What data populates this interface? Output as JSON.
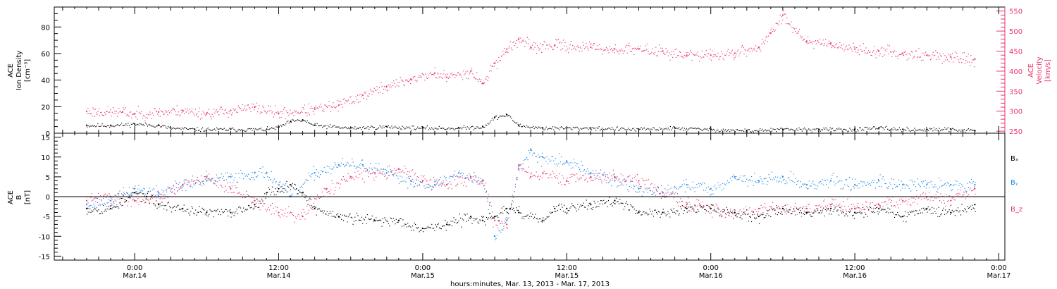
{
  "chart_data": [
    {
      "type": "scatter",
      "panel": "top",
      "ylabel_left": [
        "ACE",
        "Ion Density",
        "[cm⁻³]"
      ],
      "ylabel_right": [
        "ACE",
        "Velocity",
        "[km/s]"
      ],
      "left_axis": {
        "ylim": [
          0,
          95
        ],
        "ticks": [
          "0",
          "20",
          "40",
          "60",
          "80"
        ],
        "tick_values": [
          0,
          20,
          40,
          60,
          80
        ]
      },
      "right_axis": {
        "ylim": [
          245,
          560
        ],
        "ticks": [
          "250",
          "300",
          "350",
          "400",
          "450",
          "500",
          "550"
        ],
        "tick_values": [
          250,
          300,
          350,
          400,
          450,
          500,
          550
        ],
        "color": "#e8356a"
      },
      "series": [
        {
          "axis": "left",
          "color": "#000000",
          "points": [
            [
              -4,
              6
            ],
            [
              -2,
              6
            ],
            [
              0,
              7
            ],
            [
              2,
              6
            ],
            [
              3,
              4
            ],
            [
              5,
              3
            ],
            [
              8,
              3
            ],
            [
              11,
              3
            ],
            [
              12,
              5
            ],
            [
              13,
              9
            ],
            [
              14,
              10
            ],
            [
              15,
              6
            ],
            [
              18,
              4
            ],
            [
              21,
              5
            ],
            [
              24,
              4
            ],
            [
              27,
              4
            ],
            [
              29,
              5
            ],
            [
              30,
              12
            ],
            [
              31,
              14
            ],
            [
              32,
              6
            ],
            [
              34,
              4
            ],
            [
              38,
              4
            ],
            [
              42,
              3
            ],
            [
              45,
              4
            ],
            [
              48,
              3
            ],
            [
              51,
              2
            ],
            [
              54,
              3
            ],
            [
              57,
              3
            ],
            [
              60,
              3
            ],
            [
              62,
              4
            ],
            [
              64,
              3
            ],
            [
              66,
              3
            ],
            [
              68,
              3
            ],
            [
              70,
              2
            ]
          ]
        },
        {
          "axis": "right",
          "color": "#e8356a",
          "points": [
            [
              -4,
              300
            ],
            [
              -1,
              298
            ],
            [
              0,
              293
            ],
            [
              2,
              298
            ],
            [
              4,
              302
            ],
            [
              6,
              295
            ],
            [
              8,
              302
            ],
            [
              10,
              310
            ],
            [
              12,
              295
            ],
            [
              15,
              305
            ],
            [
              17,
              315
            ],
            [
              19,
              340
            ],
            [
              21,
              362
            ],
            [
              23,
              380
            ],
            [
              25,
              395
            ],
            [
              26,
              385
            ],
            [
              28,
              400
            ],
            [
              29,
              370
            ],
            [
              30,
              420
            ],
            [
              31,
              455
            ],
            [
              32,
              480
            ],
            [
              33,
              460
            ],
            [
              35,
              465
            ],
            [
              38,
              460
            ],
            [
              40,
              455
            ],
            [
              42,
              455
            ],
            [
              44,
              450
            ],
            [
              46,
              440
            ],
            [
              48,
              440
            ],
            [
              50,
              445
            ],
            [
              52,
              460
            ],
            [
              53,
              495
            ],
            [
              54,
              540
            ],
            [
              56,
              475
            ],
            [
              58,
              470
            ],
            [
              60,
              455
            ],
            [
              62,
              450
            ],
            [
              64,
              445
            ],
            [
              66,
              440
            ],
            [
              68,
              435
            ],
            [
              70,
              430
            ]
          ]
        }
      ]
    },
    {
      "type": "scatter",
      "panel": "bottom",
      "ylabel_left": [
        "ACE",
        "B",
        "[nT]"
      ],
      "ylim": [
        -16,
        16
      ],
      "ticks": [
        "-15",
        "-10",
        "-5",
        "0",
        "5",
        "10",
        "15"
      ],
      "tick_values": [
        -15,
        -10,
        -5,
        0,
        5,
        10,
        15
      ],
      "zero_line": true,
      "legend": [
        "Bₓ",
        "Bᵧ",
        "B_z"
      ],
      "legend_position": "right",
      "series": [
        {
          "name": "Bₓ",
          "color": "#000000",
          "points": [
            [
              -4,
              -3
            ],
            [
              -2,
              -3
            ],
            [
              0,
              1
            ],
            [
              1,
              0
            ],
            [
              2,
              -2
            ],
            [
              4,
              -3
            ],
            [
              6,
              -4
            ],
            [
              8,
              -4
            ],
            [
              10,
              -2
            ],
            [
              11,
              1
            ],
            [
              12,
              2
            ],
            [
              13,
              3
            ],
            [
              14,
              1
            ],
            [
              15,
              -3
            ],
            [
              17,
              -5
            ],
            [
              20,
              -6
            ],
            [
              22,
              -6
            ],
            [
              24,
              -8
            ],
            [
              26,
              -7
            ],
            [
              28,
              -5
            ],
            [
              29,
              -6
            ],
            [
              30,
              -5
            ],
            [
              31,
              -3
            ],
            [
              32,
              -4
            ],
            [
              34,
              -6
            ],
            [
              35,
              -3
            ],
            [
              36,
              -3
            ],
            [
              38,
              -2
            ],
            [
              40,
              -1
            ],
            [
              42,
              -4
            ],
            [
              44,
              -4
            ],
            [
              46,
              -3
            ],
            [
              48,
              -3
            ],
            [
              50,
              -4
            ],
            [
              52,
              -5
            ],
            [
              54,
              -3
            ],
            [
              56,
              -4
            ],
            [
              58,
              -3
            ],
            [
              60,
              -4
            ],
            [
              62,
              -3
            ],
            [
              64,
              -5
            ],
            [
              66,
              -3
            ],
            [
              68,
              -4
            ],
            [
              70,
              -2
            ]
          ]
        },
        {
          "name": "Bᵧ",
          "color": "#1f86e6",
          "points": [
            [
              -4,
              -2
            ],
            [
              -2,
              -1
            ],
            [
              0,
              2
            ],
            [
              2,
              1
            ],
            [
              4,
              3
            ],
            [
              6,
              4
            ],
            [
              8,
              5
            ],
            [
              10,
              6
            ],
            [
              11,
              6
            ],
            [
              13,
              0
            ],
            [
              15,
              6
            ],
            [
              17,
              8
            ],
            [
              19,
              8
            ],
            [
              21,
              6
            ],
            [
              23,
              4
            ],
            [
              25,
              3
            ],
            [
              27,
              6
            ],
            [
              29,
              4
            ],
            [
              30,
              -10
            ],
            [
              31,
              -6
            ],
            [
              32,
              7
            ],
            [
              33,
              12
            ],
            [
              34,
              10
            ],
            [
              36,
              9
            ],
            [
              38,
              6
            ],
            [
              40,
              4
            ],
            [
              42,
              2
            ],
            [
              44,
              1
            ],
            [
              46,
              3
            ],
            [
              48,
              2
            ],
            [
              50,
              5
            ],
            [
              52,
              4
            ],
            [
              54,
              5
            ],
            [
              56,
              3
            ],
            [
              58,
              4
            ],
            [
              60,
              3
            ],
            [
              62,
              4
            ],
            [
              64,
              3
            ],
            [
              66,
              3
            ],
            [
              68,
              3
            ],
            [
              70,
              3
            ]
          ]
        },
        {
          "name": "B_z",
          "color": "#e8356a",
          "points": [
            [
              -4,
              -1
            ],
            [
              -2,
              0
            ],
            [
              0,
              -1
            ],
            [
              2,
              0
            ],
            [
              4,
              3
            ],
            [
              6,
              5
            ],
            [
              8,
              2
            ],
            [
              10,
              -1
            ],
            [
              12,
              -4
            ],
            [
              14,
              -5
            ],
            [
              16,
              2
            ],
            [
              18,
              5
            ],
            [
              20,
              6
            ],
            [
              22,
              7
            ],
            [
              24,
              4
            ],
            [
              26,
              3
            ],
            [
              28,
              5
            ],
            [
              29,
              4
            ],
            [
              30,
              -6
            ],
            [
              31,
              -7
            ],
            [
              32,
              8
            ],
            [
              33,
              5
            ],
            [
              34,
              6
            ],
            [
              36,
              4
            ],
            [
              38,
              5
            ],
            [
              40,
              5
            ],
            [
              42,
              4
            ],
            [
              44,
              1
            ],
            [
              46,
              -2
            ],
            [
              48,
              -3
            ],
            [
              50,
              -4
            ],
            [
              52,
              -3
            ],
            [
              54,
              -3
            ],
            [
              56,
              -3
            ],
            [
              58,
              -2
            ],
            [
              60,
              -3
            ],
            [
              62,
              -2
            ],
            [
              64,
              -1
            ],
            [
              66,
              0
            ],
            [
              68,
              -1
            ],
            [
              70,
              2
            ]
          ]
        }
      ]
    }
  ],
  "x_axis": {
    "range_hours": [
      -6.7,
      72.5
    ],
    "ticks": [
      {
        "hour": 0,
        "time": "0:00",
        "date": "Mar.14"
      },
      {
        "hour": 12,
        "time": "12:00",
        "date": "Mar.14"
      },
      {
        "hour": 24,
        "time": "0:00",
        "date": "Mar.15"
      },
      {
        "hour": 36,
        "time": "12:00",
        "date": "Mar.15"
      },
      {
        "hour": 48,
        "time": "0:00",
        "date": "Mar.16"
      },
      {
        "hour": 60,
        "time": "12:00",
        "date": "Mar.16"
      },
      {
        "hour": 72,
        "time": "0:00",
        "date": "Mar.17"
      }
    ],
    "caption": "hours:minutes, Mar. 13, 2013 - Mar. 17, 2013"
  }
}
